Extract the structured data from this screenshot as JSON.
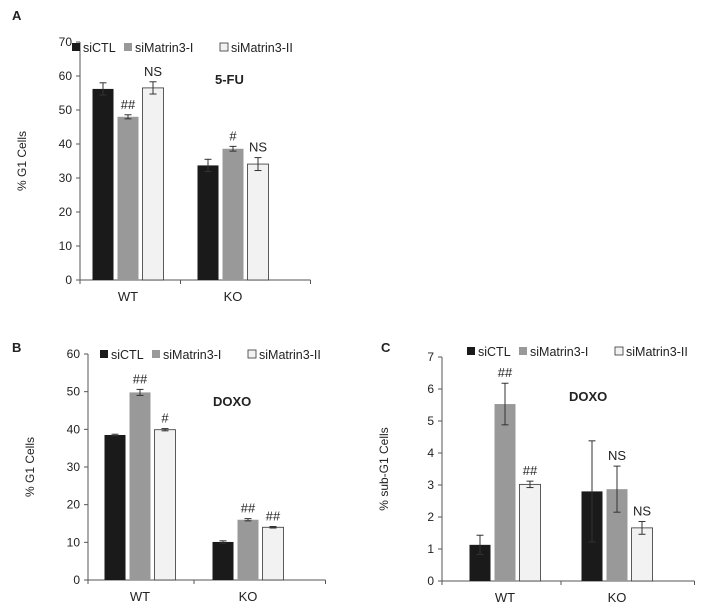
{
  "panels": [
    {
      "letter": "A",
      "condition": "5-FU",
      "ylabel": "% G1 Cells",
      "ylim": [
        0,
        70
      ],
      "yticks": [
        0,
        10,
        20,
        30,
        40,
        50,
        60,
        70
      ]
    },
    {
      "letter": "B",
      "condition": "DOXO",
      "ylabel": "% G1 Cells",
      "ylim": [
        0,
        60
      ],
      "yticks": [
        0,
        10,
        20,
        30,
        40,
        50,
        60
      ]
    },
    {
      "letter": "C",
      "condition": "DOXO",
      "ylabel": "% sub-G1 Cells",
      "ylim": [
        0,
        7
      ],
      "yticks": [
        0,
        1,
        2,
        3,
        4,
        5,
        6,
        7
      ]
    }
  ],
  "chart_data": [
    {
      "type": "bar",
      "title": "",
      "xlabel": "",
      "ylabel": "% G1 Cells",
      "ylim": [
        0,
        70
      ],
      "grid": false,
      "legend_position": "top",
      "categories": [
        "WT",
        "KO"
      ],
      "series": [
        {
          "name": "siCTL",
          "color": "#1a1a1a",
          "values": [
            56.2,
            33.7
          ],
          "errors": [
            1.8,
            1.8
          ]
        },
        {
          "name": "siMatrin3-I",
          "color": "#999999",
          "values": [
            48.0,
            38.6
          ],
          "errors": [
            0.6,
            0.7
          ]
        },
        {
          "name": "siMatrin3-II",
          "color": "#f2f2f2",
          "values": [
            56.5,
            34.1
          ],
          "errors": [
            1.8,
            1.9
          ]
        }
      ],
      "annotations": [
        {
          "category": "WT",
          "series": "siMatrin3-I",
          "text": "##"
        },
        {
          "category": "WT",
          "series": "siMatrin3-II",
          "text": "NS"
        },
        {
          "category": "KO",
          "series": "siMatrin3-I",
          "text": "#"
        },
        {
          "category": "KO",
          "series": "siMatrin3-II",
          "text": "NS"
        }
      ]
    },
    {
      "type": "bar",
      "title": "",
      "xlabel": "",
      "ylabel": "% G1 Cells",
      "ylim": [
        0,
        60
      ],
      "grid": false,
      "legend_position": "top",
      "categories": [
        "WT",
        "KO"
      ],
      "series": [
        {
          "name": "siCTL",
          "color": "#1a1a1a",
          "values": [
            38.5,
            10.1
          ],
          "errors": [
            0.2,
            0.3
          ]
        },
        {
          "name": "siMatrin3-I",
          "color": "#999999",
          "values": [
            49.8,
            16.0
          ],
          "errors": [
            0.8,
            0.3
          ]
        },
        {
          "name": "siMatrin3-II",
          "color": "#f2f2f2",
          "values": [
            39.9,
            14.0
          ],
          "errors": [
            0.3,
            0.2
          ]
        }
      ],
      "annotations": [
        {
          "category": "WT",
          "series": "siMatrin3-I",
          "text": "##"
        },
        {
          "category": "WT",
          "series": "siMatrin3-II",
          "text": "#"
        },
        {
          "category": "KO",
          "series": "siMatrin3-I",
          "text": "##"
        },
        {
          "category": "KO",
          "series": "siMatrin3-II",
          "text": "##"
        }
      ]
    },
    {
      "type": "bar",
      "title": "",
      "xlabel": "",
      "ylabel": "% sub-G1 Cells",
      "ylim": [
        0,
        7
      ],
      "grid": false,
      "legend_position": "top",
      "categories": [
        "WT",
        "KO"
      ],
      "series": [
        {
          "name": "siCTL",
          "color": "#1a1a1a",
          "values": [
            1.13,
            2.8
          ],
          "errors": [
            0.3,
            1.58
          ]
        },
        {
          "name": "siMatrin3-I",
          "color": "#999999",
          "values": [
            5.53,
            2.87
          ],
          "errors": [
            0.65,
            0.72
          ]
        },
        {
          "name": "siMatrin3-II",
          "color": "#f2f2f2",
          "values": [
            3.02,
            1.66
          ],
          "errors": [
            0.1,
            0.2
          ]
        }
      ],
      "annotations": [
        {
          "category": "WT",
          "series": "siMatrin3-I",
          "text": "##"
        },
        {
          "category": "WT",
          "series": "siMatrin3-II",
          "text": "##"
        },
        {
          "category": "KO",
          "series": "siMatrin3-I",
          "text": "NS"
        },
        {
          "category": "KO",
          "series": "siMatrin3-II",
          "text": "NS"
        }
      ]
    }
  ]
}
